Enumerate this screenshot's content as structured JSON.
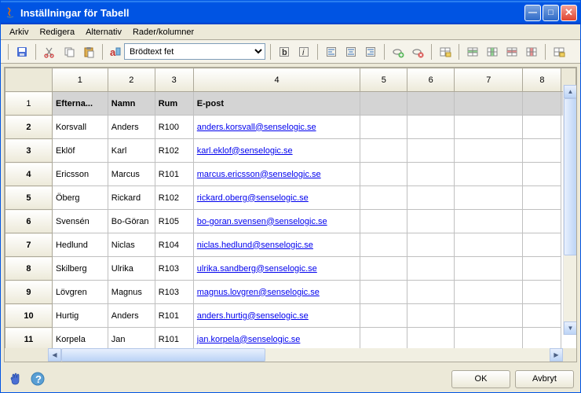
{
  "window": {
    "title": "Inställningar för Tabell"
  },
  "menu": {
    "items": [
      "Arkiv",
      "Redigera",
      "Alternativ",
      "Rader/kolumner"
    ]
  },
  "toolbar": {
    "style_label": "Brödtext fet"
  },
  "columns": {
    "headers": [
      "1",
      "2",
      "3",
      "4",
      "5",
      "6",
      "7",
      "8"
    ],
    "widths": [
      65,
      55,
      45,
      195,
      55,
      55,
      80,
      45
    ]
  },
  "datahdr": {
    "cells": [
      "Efterna...",
      "Namn",
      "Rum",
      "E-post",
      "",
      "",
      "",
      ""
    ]
  },
  "rows": [
    {
      "n": "2",
      "c": [
        "Korsvall",
        "Anders",
        "R100",
        "anders.korsvall@senselogic.se",
        "",
        "",
        "",
        ""
      ]
    },
    {
      "n": "3",
      "c": [
        "Eklöf",
        "Karl",
        "R102",
        "karl.eklof@senselogic.se",
        "",
        "",
        "",
        ""
      ]
    },
    {
      "n": "4",
      "c": [
        "Ericsson",
        "Marcus",
        "R101",
        "marcus.ericsson@senselogic.se",
        "",
        "",
        "",
        ""
      ]
    },
    {
      "n": "5",
      "c": [
        "Öberg",
        "Rickard",
        "R102",
        "rickard.oberg@senselogic.se",
        "",
        "",
        "",
        ""
      ]
    },
    {
      "n": "6",
      "c": [
        "Svensén",
        "Bo-Göran",
        "R105",
        "bo-goran.svensen@senselogic.se",
        "",
        "",
        "",
        ""
      ]
    },
    {
      "n": "7",
      "c": [
        "Hedlund",
        "Niclas",
        "R104",
        "niclas.hedlund@senselogic.se",
        "",
        "",
        "",
        ""
      ]
    },
    {
      "n": "8",
      "c": [
        "Skilberg",
        "Ulrika",
        "R103",
        "ulrika.sandberg@senselogic.se",
        "",
        "",
        "",
        ""
      ]
    },
    {
      "n": "9",
      "c": [
        "Lövgren",
        "Magnus",
        "R103",
        "magnus.lovgren@senselogic.se",
        "",
        "",
        "",
        ""
      ]
    },
    {
      "n": "10",
      "c": [
        "Hurtig",
        "Anders",
        "R101",
        "anders.hurtig@senselogic.se",
        "",
        "",
        "",
        ""
      ]
    },
    {
      "n": "11",
      "c": [
        "Korpela",
        "Jan",
        "R101",
        "jan.korpela@senselogic.se",
        "",
        "",
        "",
        ""
      ]
    }
  ],
  "footer": {
    "ok": "OK",
    "cancel": "Avbryt"
  }
}
